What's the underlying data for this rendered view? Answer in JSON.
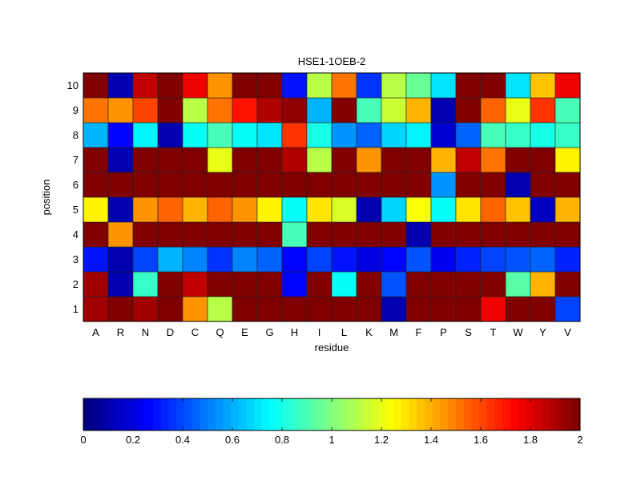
{
  "chart_data": {
    "type": "heatmap",
    "title": "HSE1-1OEB-2",
    "xlabel": "residue",
    "ylabel": "position",
    "x": [
      "A",
      "R",
      "N",
      "D",
      "C",
      "Q",
      "E",
      "G",
      "H",
      "I",
      "L",
      "K",
      "M",
      "F",
      "P",
      "S",
      "T",
      "W",
      "Y",
      "V"
    ],
    "y": [
      "1",
      "2",
      "3",
      "4",
      "5",
      "6",
      "7",
      "8",
      "9",
      "10"
    ],
    "values_by_position": {
      "10": [
        2.0,
        0.1,
        1.85,
        2.0,
        1.75,
        1.45,
        2.0,
        2.0,
        0.3,
        1.1,
        1.5,
        0.35,
        1.1,
        0.95,
        0.7,
        2.0,
        2.0,
        0.7,
        1.35,
        1.75
      ],
      "9": [
        1.5,
        1.45,
        1.6,
        2.0,
        1.1,
        1.5,
        1.7,
        1.9,
        1.95,
        0.6,
        2.0,
        0.9,
        1.15,
        1.4,
        0.1,
        2.0,
        1.55,
        1.2,
        1.65,
        0.9
      ],
      "8": [
        0.6,
        0.27,
        0.73,
        0.1,
        0.78,
        0.9,
        0.75,
        0.7,
        1.65,
        0.8,
        0.55,
        0.45,
        0.68,
        0.72,
        0.17,
        0.45,
        0.9,
        0.85,
        0.8,
        0.87
      ],
      "7": [
        2.0,
        0.1,
        2.0,
        2.0,
        2.0,
        1.2,
        2.0,
        2.0,
        1.9,
        1.1,
        2.0,
        1.45,
        2.0,
        2.0,
        1.4,
        1.85,
        1.5,
        2.0,
        2.0,
        1.25
      ],
      "6": [
        2.0,
        2.0,
        2.0,
        2.0,
        2.0,
        2.0,
        2.0,
        2.0,
        2.0,
        2.0,
        2.0,
        2.0,
        2.0,
        2.0,
        0.55,
        2.0,
        2.0,
        0.1,
        2.0,
        2.0
      ],
      "5": [
        1.25,
        0.1,
        1.45,
        1.55,
        1.38,
        1.55,
        1.45,
        1.27,
        0.75,
        1.3,
        1.18,
        0.1,
        0.68,
        1.24,
        0.75,
        1.3,
        1.55,
        1.36,
        0.13,
        1.38
      ],
      "4": [
        2.0,
        1.45,
        2.0,
        2.0,
        2.0,
        2.0,
        2.0,
        2.0,
        0.9,
        2.0,
        2.0,
        2.0,
        2.0,
        0.1,
        2.0,
        2.0,
        2.0,
        2.0,
        2.0,
        2.0
      ],
      "3": [
        0.3,
        0.1,
        0.4,
        0.6,
        0.5,
        0.35,
        0.5,
        0.45,
        0.28,
        0.38,
        0.3,
        0.2,
        0.27,
        0.42,
        0.22,
        0.33,
        0.38,
        0.42,
        0.45,
        0.33
      ],
      "2": [
        1.92,
        0.1,
        0.85,
        2.0,
        1.85,
        2.0,
        2.0,
        2.0,
        0.27,
        2.0,
        0.75,
        2.0,
        0.42,
        2.0,
        2.0,
        2.0,
        2.0,
        0.92,
        1.38,
        2.0
      ],
      "1": [
        1.92,
        2.0,
        1.92,
        2.0,
        1.45,
        1.1,
        2.0,
        2.0,
        2.0,
        2.0,
        2.0,
        2.0,
        0.1,
        2.0,
        2.0,
        2.0,
        1.75,
        2.0,
        2.0,
        0.38
      ]
    },
    "colormap": "jet",
    "clim": [
      0,
      2
    ],
    "colorbar": {
      "placement": "bottom",
      "ticks": [
        "0",
        "0.2",
        "0.4",
        "0.6",
        "0.8",
        "1",
        "1.2",
        "1.4",
        "1.6",
        "1.8",
        "2"
      ]
    }
  }
}
